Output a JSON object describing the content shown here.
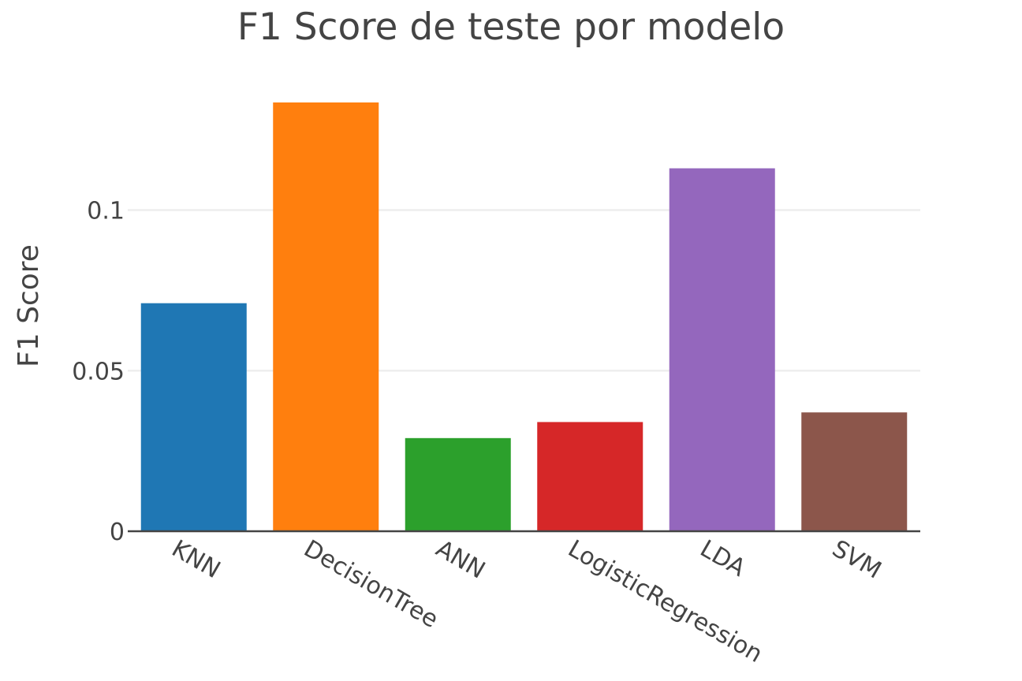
{
  "chart_data": {
    "type": "bar",
    "title": "F1 Score de teste por modelo",
    "xlabel": "",
    "ylabel": "F1 Score",
    "categories": [
      "KNN",
      "DecisionTree",
      "ANN",
      "LogisticRegression",
      "LDA",
      "SVM"
    ],
    "values": [
      0.071,
      0.1335,
      0.029,
      0.034,
      0.113,
      0.037
    ],
    "colors": [
      "#1f77b4",
      "#ff7f0e",
      "#2ca02c",
      "#d62728",
      "#9467bd",
      "#8c564b"
    ],
    "ylim": [
      0,
      0.1335
    ],
    "yticks": [
      0,
      0.05,
      0.1
    ],
    "ytick_labels": [
      "0",
      "0.05",
      "0.1"
    ],
    "grid": true,
    "legend": "none"
  }
}
